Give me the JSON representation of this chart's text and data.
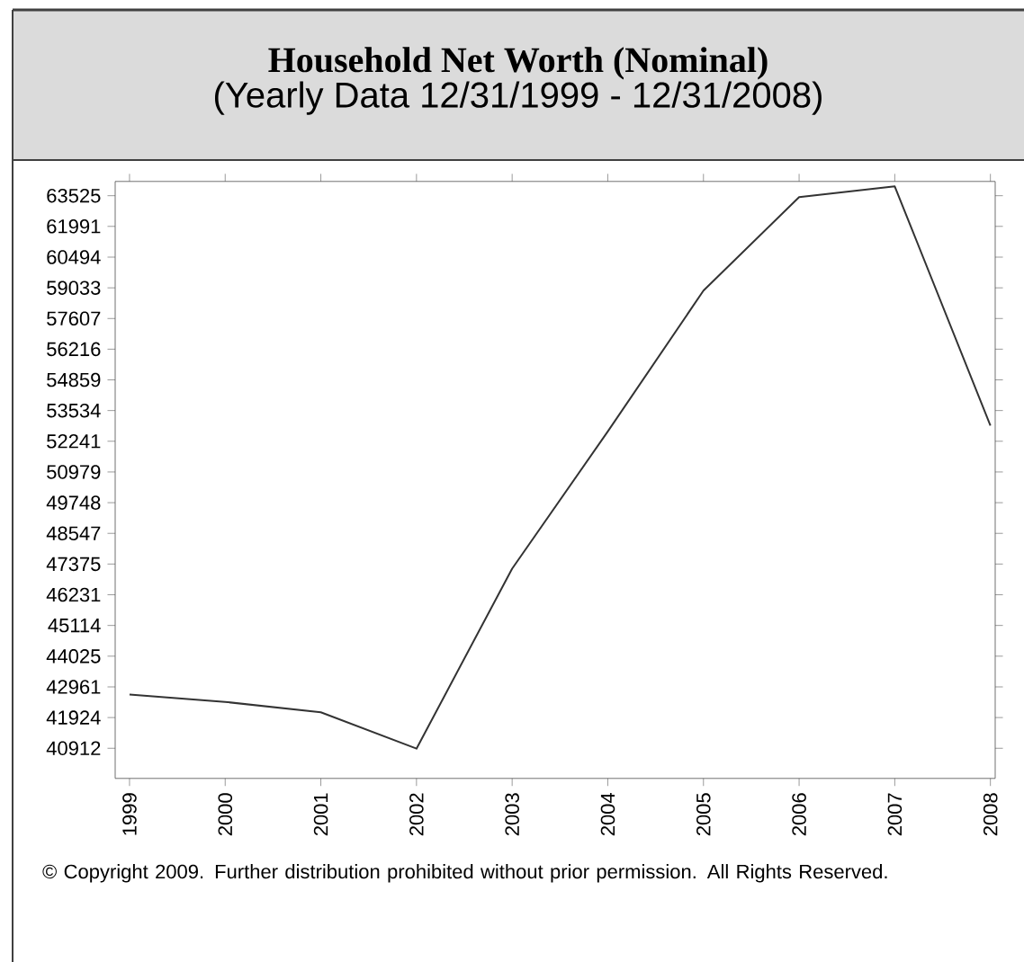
{
  "chart_data": {
    "type": "line",
    "title": "Household Net Worth (Nominal)",
    "subtitle": "(Yearly Data 12/31/1999 - 12/31/2008)",
    "categories": [
      "1999",
      "2000",
      "2001",
      "2002",
      "2003",
      "2004",
      "2005",
      "2006",
      "2007",
      "2008"
    ],
    "values": [
      42700,
      42450,
      42100,
      40900,
      47200,
      52650,
      58900,
      63450,
      64000,
      52900
    ],
    "color": "#333333",
    "log": "y",
    "ylim": [
      39950,
      64250
    ],
    "yticks": [
      40912,
      41924,
      42961,
      44025,
      45114,
      46231,
      47375,
      48547,
      49748,
      50979,
      52241,
      53534,
      54859,
      56216,
      57607,
      59033,
      60494,
      61991,
      63525
    ],
    "annotations": [
      "© Copyright 2009. Further distribution prohibited without prior permission. All Rights Reserved."
    ]
  }
}
